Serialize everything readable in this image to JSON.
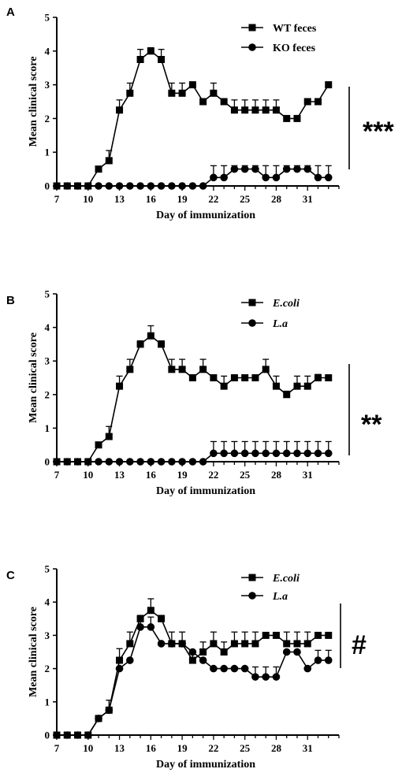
{
  "chart_data": [
    {
      "panel": "A",
      "type": "line",
      "xlabel": "Day of immunization",
      "ylabel": "Mean clinical score",
      "xlim": [
        7,
        34
      ],
      "ylim": [
        0,
        5
      ],
      "xticks": [
        7,
        10,
        13,
        16,
        19,
        22,
        25,
        28,
        31
      ],
      "yticks": [
        0,
        1,
        2,
        3,
        4,
        5
      ],
      "legend_position": "top-right",
      "significance": "***",
      "x": [
        7,
        8,
        9,
        10,
        11,
        12,
        13,
        14,
        15,
        16,
        17,
        18,
        19,
        20,
        21,
        22,
        23,
        24,
        25,
        26,
        27,
        28,
        29,
        30,
        31,
        32,
        33
      ],
      "series": [
        {
          "name": "WT feces",
          "marker": "square",
          "values": [
            0,
            0,
            0,
            0,
            0.5,
            0.75,
            2.25,
            2.75,
            3.75,
            4.0,
            3.75,
            2.75,
            2.75,
            3.0,
            2.5,
            2.75,
            2.5,
            2.25,
            2.25,
            2.25,
            2.25,
            2.25,
            2.0,
            2.0,
            2.5,
            2.5,
            3.0
          ],
          "errors": [
            0,
            0,
            0,
            0,
            0,
            0.3,
            0.3,
            0.3,
            0.3,
            0.1,
            0.3,
            0.3,
            0.3,
            0,
            0,
            0.3,
            0,
            0.3,
            0.3,
            0.3,
            0.3,
            0.3,
            0,
            0,
            0,
            0,
            0
          ]
        },
        {
          "name": "KO feces",
          "marker": "circle",
          "values": [
            0,
            0,
            0,
            0,
            0,
            0,
            0,
            0,
            0,
            0,
            0,
            0,
            0,
            0,
            0,
            0.25,
            0.25,
            0.5,
            0.5,
            0.5,
            0.25,
            0.25,
            0.5,
            0.5,
            0.5,
            0.25,
            0.25
          ],
          "errors": [
            0,
            0,
            0,
            0,
            0,
            0,
            0,
            0,
            0,
            0,
            0,
            0,
            0,
            0,
            0,
            0.35,
            0.35,
            0.1,
            0.1,
            0.1,
            0.35,
            0.35,
            0.1,
            0.1,
            0.1,
            0.35,
            0.35
          ]
        }
      ]
    },
    {
      "panel": "B",
      "type": "line",
      "xlabel": "Day of immunization",
      "ylabel": "Mean clinical score",
      "xlim": [
        7,
        34
      ],
      "ylim": [
        0,
        5
      ],
      "xticks": [
        7,
        10,
        13,
        16,
        19,
        22,
        25,
        28,
        31
      ],
      "yticks": [
        0,
        1,
        2,
        3,
        4,
        5
      ],
      "legend_position": "top-right",
      "legend_italic": true,
      "significance": "**",
      "x": [
        7,
        8,
        9,
        10,
        11,
        12,
        13,
        14,
        15,
        16,
        17,
        18,
        19,
        20,
        21,
        22,
        23,
        24,
        25,
        26,
        27,
        28,
        29,
        30,
        31,
        32,
        33
      ],
      "series": [
        {
          "name": "E.coli",
          "marker": "square",
          "values": [
            0,
            0,
            0,
            0,
            0.5,
            0.75,
            2.25,
            2.75,
            3.5,
            3.75,
            3.5,
            2.75,
            2.75,
            2.5,
            2.75,
            2.5,
            2.25,
            2.5,
            2.5,
            2.5,
            2.75,
            2.25,
            2.0,
            2.25,
            2.25,
            2.5,
            2.5
          ],
          "errors": [
            0,
            0,
            0,
            0,
            0,
            0.3,
            0.3,
            0.3,
            0.1,
            0.3,
            0.1,
            0.3,
            0.3,
            0,
            0.3,
            0,
            0.3,
            0,
            0,
            0,
            0.3,
            0.3,
            0.1,
            0.3,
            0.3,
            0.1,
            0
          ]
        },
        {
          "name": "L.a",
          "marker": "circle",
          "values": [
            0,
            0,
            0,
            0,
            0,
            0,
            0,
            0,
            0,
            0,
            0,
            0,
            0,
            0,
            0,
            0.25,
            0.25,
            0.25,
            0.25,
            0.25,
            0.25,
            0.25,
            0.25,
            0.25,
            0.25,
            0.25,
            0.25
          ],
          "errors": [
            0,
            0,
            0,
            0,
            0,
            0,
            0,
            0,
            0,
            0,
            0,
            0,
            0,
            0,
            0,
            0.35,
            0.35,
            0.35,
            0.35,
            0.35,
            0.35,
            0.35,
            0.35,
            0.35,
            0.35,
            0.35,
            0.35
          ]
        }
      ]
    },
    {
      "panel": "C",
      "type": "line",
      "xlabel": "Day of immunization",
      "ylabel": "Mean clinical score",
      "xlim": [
        7,
        34
      ],
      "ylim": [
        0,
        5
      ],
      "xticks": [
        7,
        10,
        13,
        16,
        19,
        22,
        25,
        28,
        31
      ],
      "yticks": [
        0,
        1,
        2,
        3,
        4,
        5
      ],
      "legend_position": "top-right",
      "legend_italic": true,
      "significance": "#",
      "x": [
        7,
        8,
        9,
        10,
        11,
        12,
        13,
        14,
        15,
        16,
        17,
        18,
        19,
        20,
        21,
        22,
        23,
        24,
        25,
        26,
        27,
        28,
        29,
        30,
        31,
        32,
        33
      ],
      "series": [
        {
          "name": "E.coli",
          "marker": "square",
          "values": [
            0,
            0,
            0,
            0,
            0.5,
            0.75,
            2.25,
            2.75,
            3.5,
            3.75,
            3.5,
            2.75,
            2.75,
            2.25,
            2.5,
            2.75,
            2.5,
            2.75,
            2.75,
            2.75,
            3.0,
            3.0,
            2.75,
            2.75,
            2.75,
            3.0,
            3.0
          ],
          "errors": [
            0,
            0,
            0,
            0,
            0,
            0.3,
            0.35,
            0.35,
            0.1,
            0.35,
            0.1,
            0.35,
            0.35,
            0.3,
            0.3,
            0.35,
            0.3,
            0.35,
            0.35,
            0.35,
            0,
            0,
            0.35,
            0.35,
            0.35,
            0,
            0
          ]
        },
        {
          "name": "L.a",
          "marker": "circle",
          "values": [
            0,
            0,
            0,
            0,
            0.5,
            0.75,
            2.0,
            2.25,
            3.25,
            3.25,
            2.75,
            2.75,
            2.75,
            2.5,
            2.25,
            2.0,
            2.0,
            2.0,
            2.0,
            1.75,
            1.75,
            1.75,
            2.5,
            2.5,
            2.0,
            2.25,
            2.25
          ],
          "errors": [
            0,
            0,
            0,
            0,
            0,
            0,
            0,
            0,
            0.3,
            0.3,
            0,
            0,
            0,
            0,
            0,
            0,
            0,
            0,
            0,
            0.3,
            0.3,
            0.3,
            0,
            0,
            0,
            0.3,
            0.3
          ]
        }
      ]
    }
  ]
}
